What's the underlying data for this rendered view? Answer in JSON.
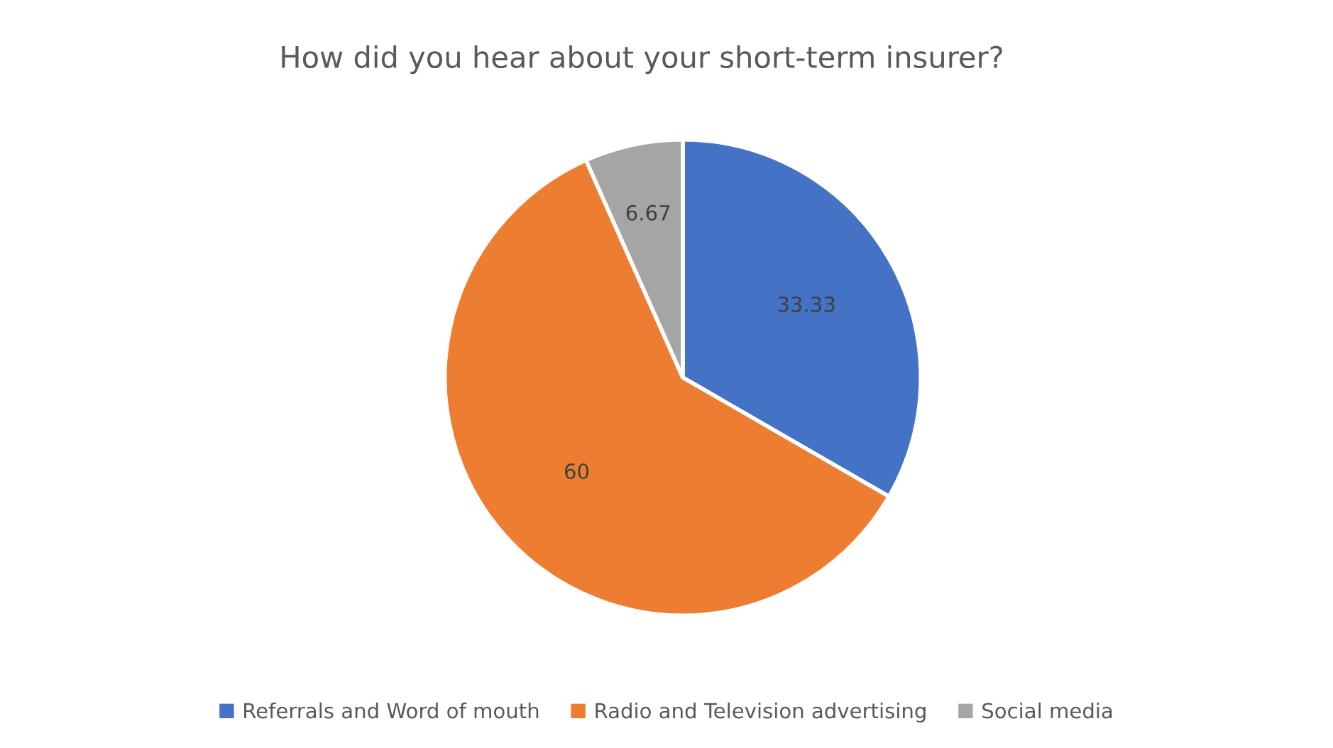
{
  "chart_data": {
    "type": "pie",
    "title": "How did you hear about your short-term insurer?",
    "categories": [
      "Referrals and Word of mouth",
      "Radio and Television advertising",
      "Social media"
    ],
    "values": [
      33.33,
      60,
      6.67
    ],
    "colors": [
      "#4472c4",
      "#ed7d31",
      "#a5a5a5"
    ],
    "data_labels": true,
    "legend": "bottom"
  }
}
